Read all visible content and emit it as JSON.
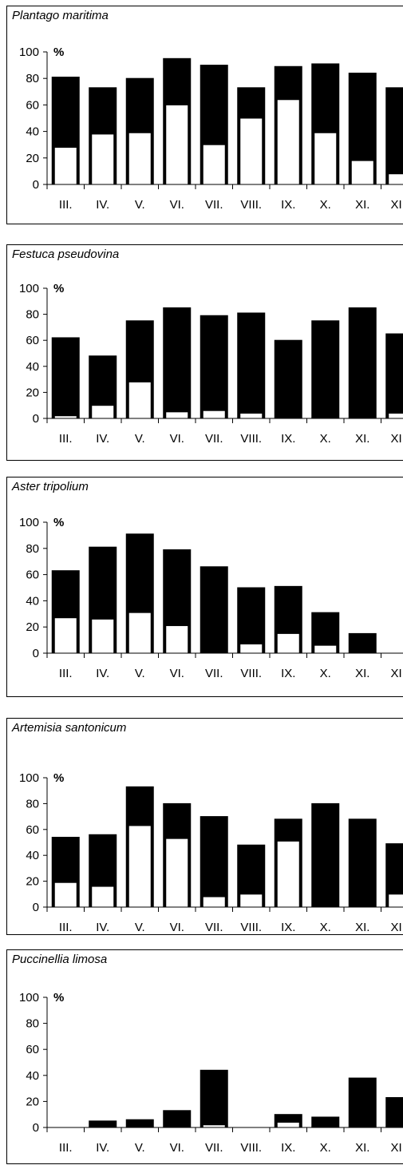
{
  "chart_data": [
    {
      "type": "bar",
      "title": "Plantago maritima",
      "ylabel": "%",
      "ylim": [
        0,
        100
      ],
      "yticks": [
        0,
        20,
        40,
        60,
        80,
        100
      ],
      "categories": [
        "III.",
        "IV.",
        "V.",
        "VI.",
        "VII.",
        "VIII.",
        "IX.",
        "X.",
        "XI.",
        "XII."
      ],
      "series": [
        {
          "values": [
            81,
            73,
            80,
            95,
            90,
            73,
            89,
            91,
            84,
            73
          ],
          "color": "#000000"
        },
        {
          "values": [
            28,
            38,
            39,
            60,
            30,
            50,
            64,
            39,
            18,
            8
          ],
          "color": "#ffffff"
        }
      ]
    },
    {
      "type": "bar",
      "title": "Festuca pseudovina",
      "ylabel": "%",
      "ylim": [
        0,
        100
      ],
      "yticks": [
        0,
        20,
        40,
        60,
        80,
        100
      ],
      "categories": [
        "III.",
        "IV.",
        "V.",
        "VI.",
        "VII.",
        "VIII.",
        "IX.",
        "X.",
        "XI.",
        "XII."
      ],
      "series": [
        {
          "values": [
            62,
            48,
            75,
            85,
            79,
            81,
            60,
            75,
            85,
            65
          ],
          "color": "#000000"
        },
        {
          "values": [
            2,
            10,
            28,
            5,
            6,
            4,
            0,
            0,
            0,
            4
          ],
          "color": "#ffffff"
        }
      ]
    },
    {
      "type": "bar",
      "title": "Aster tripolium",
      "ylabel": "%",
      "ylim": [
        0,
        100
      ],
      "yticks": [
        0,
        20,
        40,
        60,
        80,
        100
      ],
      "categories": [
        "III.",
        "IV.",
        "V.",
        "VI.",
        "VII.",
        "VIII.",
        "IX.",
        "X.",
        "XI.",
        "XII."
      ],
      "series": [
        {
          "values": [
            63,
            81,
            91,
            79,
            66,
            50,
            51,
            31,
            15,
            0
          ],
          "color": "#000000"
        },
        {
          "values": [
            27,
            26,
            31,
            21,
            0,
            7,
            15,
            6,
            0,
            0
          ],
          "color": "#ffffff"
        }
      ]
    },
    {
      "type": "bar",
      "title": "Artemisia santonicum",
      "ylabel": "%",
      "ylim": [
        0,
        100
      ],
      "yticks": [
        0,
        20,
        40,
        60,
        80,
        100
      ],
      "categories": [
        "III.",
        "IV.",
        "V.",
        "VI.",
        "VII.",
        "VIII.",
        "IX.",
        "X.",
        "XI.",
        "XII."
      ],
      "series": [
        {
          "values": [
            54,
            56,
            93,
            80,
            70,
            48,
            68,
            80,
            68,
            49
          ],
          "color": "#000000"
        },
        {
          "values": [
            19,
            16,
            63,
            53,
            8,
            10,
            51,
            0,
            0,
            10
          ],
          "color": "#ffffff"
        }
      ]
    },
    {
      "type": "bar",
      "title": "Puccinellia limosa",
      "ylabel": "%",
      "ylim": [
        0,
        100
      ],
      "yticks": [
        0,
        20,
        40,
        60,
        80,
        100
      ],
      "categories": [
        "III.",
        "IV.",
        "V.",
        "VI.",
        "VII.",
        "VIII.",
        "IX.",
        "X.",
        "XI.",
        "XII."
      ],
      "series": [
        {
          "values": [
            0,
            5,
            6,
            13,
            44,
            0,
            10,
            8,
            38,
            23
          ],
          "color": "#000000"
        },
        {
          "values": [
            0,
            0,
            0,
            0,
            2,
            0,
            4,
            0,
            0,
            0
          ],
          "color": "#ffffff"
        }
      ]
    }
  ]
}
